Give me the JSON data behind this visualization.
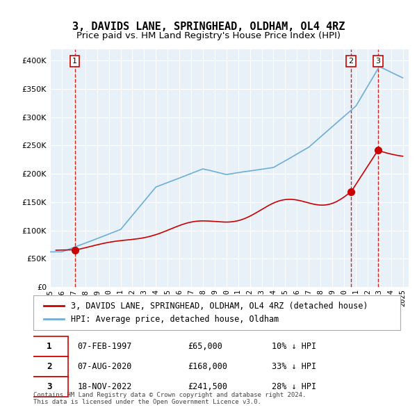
{
  "title": "3, DAVIDS LANE, SPRINGHEAD, OLDHAM, OL4 4RZ",
  "subtitle": "Price paid vs. HM Land Registry's House Price Index (HPI)",
  "xlim": [
    1995.0,
    2025.5
  ],
  "ylim": [
    0,
    420000
  ],
  "yticks": [
    0,
    50000,
    100000,
    150000,
    200000,
    250000,
    300000,
    350000,
    400000
  ],
  "ytick_labels": [
    "£0",
    "£50K",
    "£100K",
    "£150K",
    "£200K",
    "£250K",
    "£300K",
    "£350K",
    "£400K"
  ],
  "xtick_years": [
    1995,
    1996,
    1997,
    1998,
    1999,
    2000,
    2001,
    2002,
    2003,
    2004,
    2005,
    2006,
    2007,
    2008,
    2009,
    2010,
    2011,
    2012,
    2013,
    2014,
    2015,
    2016,
    2017,
    2018,
    2019,
    2020,
    2021,
    2022,
    2023,
    2024,
    2025
  ],
  "hpi_color": "#6baed6",
  "price_color": "#cc0000",
  "dashed_color": "#cc0000",
  "sale_marker_color": "#cc0000",
  "background_color": "#e8f0f8",
  "grid_color": "#ffffff",
  "legend_label_price": "3, DAVIDS LANE, SPRINGHEAD, OLDHAM, OL4 4RZ (detached house)",
  "legend_label_hpi": "HPI: Average price, detached house, Oldham",
  "sales": [
    {
      "num": 1,
      "date_x": 1997.1,
      "price": 65000,
      "label": "07-FEB-1997",
      "price_str": "£65,000",
      "hpi_str": "10% ↓ HPI"
    },
    {
      "num": 2,
      "date_x": 2020.6,
      "price": 168000,
      "label": "07-AUG-2020",
      "price_str": "£168,000",
      "hpi_str": "33% ↓ HPI"
    },
    {
      "num": 3,
      "date_x": 2022.88,
      "price": 241500,
      "label": "18-NOV-2022",
      "price_str": "£241,500",
      "hpi_str": "28% ↓ HPI"
    }
  ],
  "footnote": "Contains HM Land Registry data © Crown copyright and database right 2024.\nThis data is licensed under the Open Government Licence v3.0.",
  "title_fontsize": 11,
  "subtitle_fontsize": 9.5,
  "tick_fontsize": 8,
  "legend_fontsize": 8.5,
  "table_fontsize": 8.5
}
